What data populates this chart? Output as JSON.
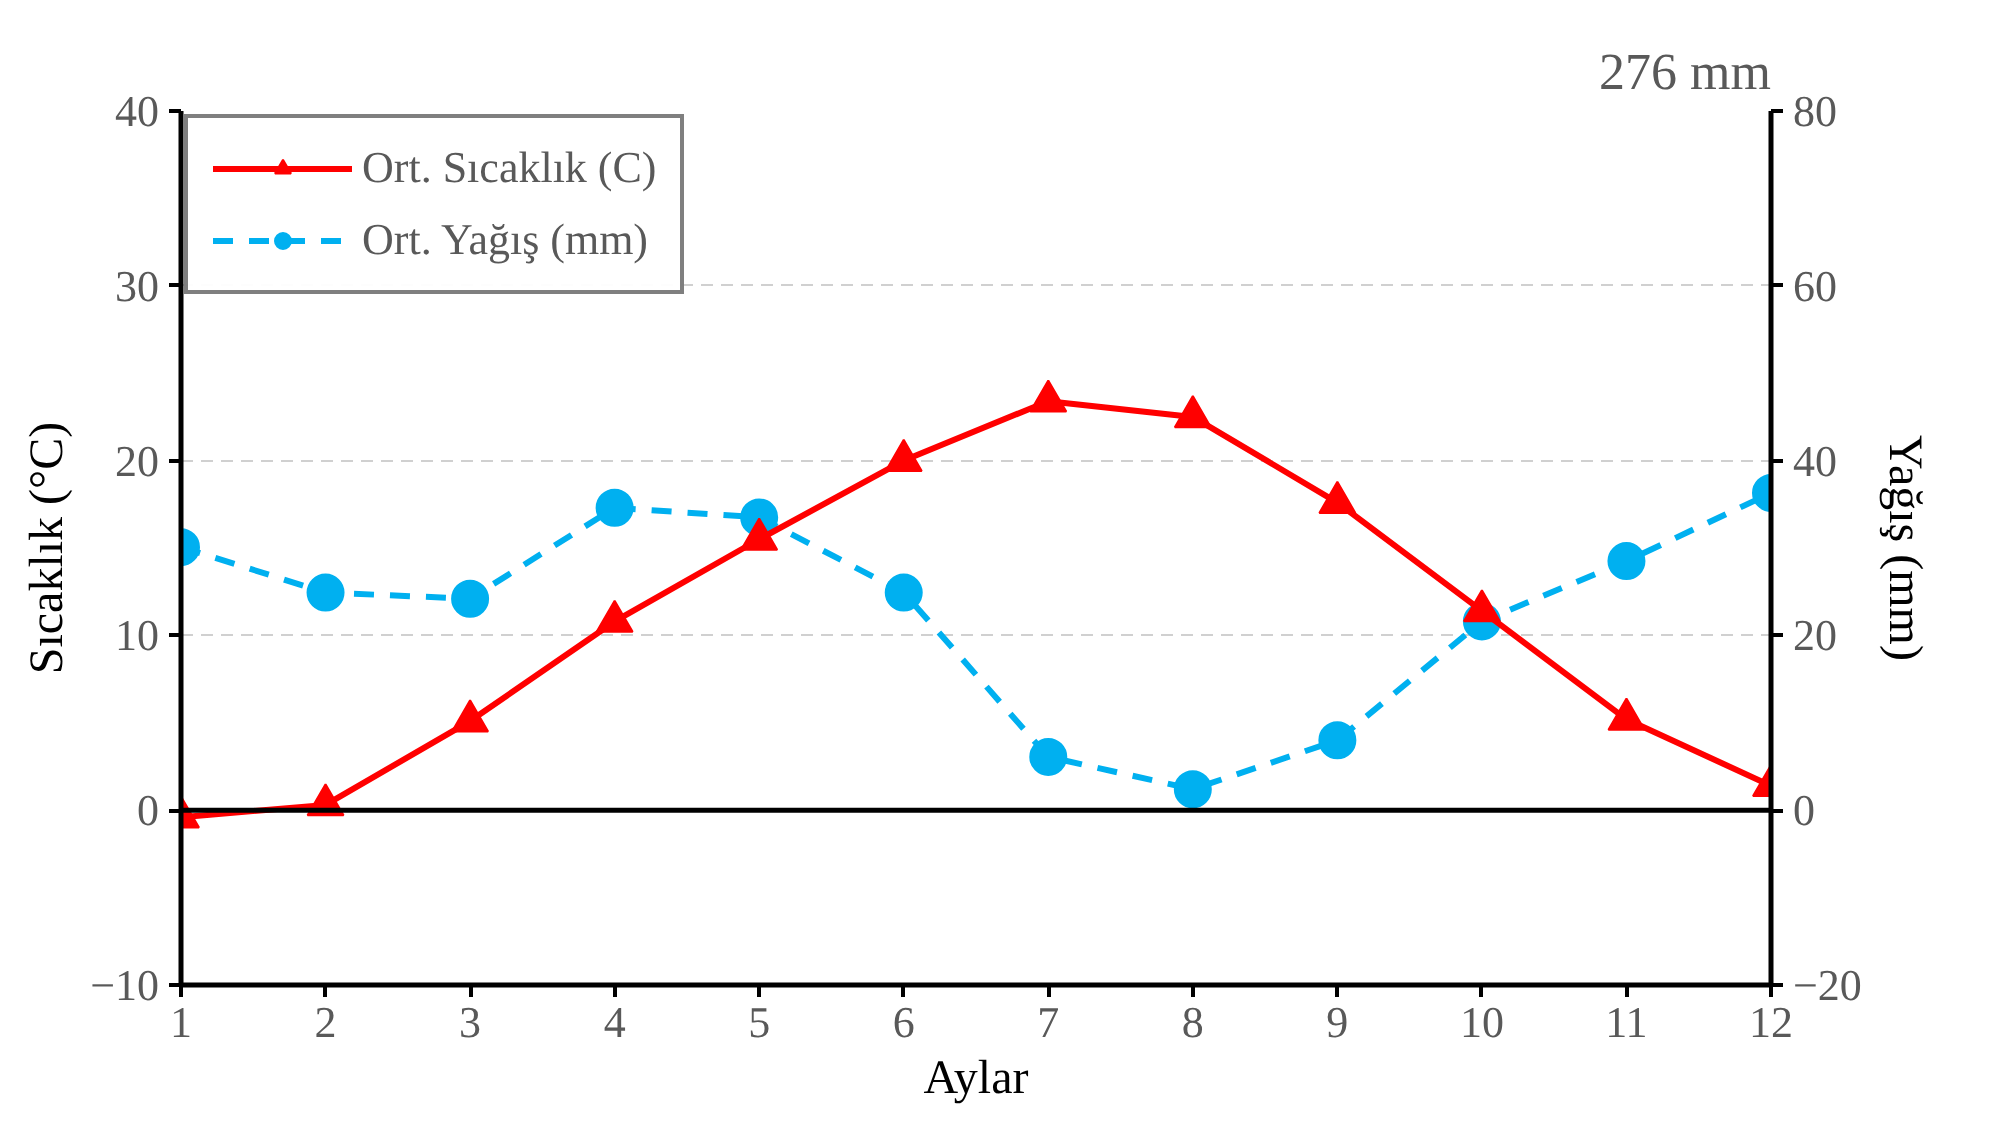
{
  "chart_data": {
    "type": "line",
    "xlabel": "Aylar",
    "ylabel": "Sıcaklık (°C)",
    "y2label": "Yağış (mm)",
    "annotations": [
      "276 mm"
    ],
    "x": [
      1,
      2,
      3,
      4,
      5,
      6,
      7,
      8,
      9,
      10,
      11,
      12
    ],
    "xlim": [
      1,
      12
    ],
    "xticks": [
      1,
      2,
      3,
      4,
      5,
      6,
      7,
      8,
      9,
      10,
      11,
      12
    ],
    "ylim": [
      -10,
      40
    ],
    "yticks": [
      -10,
      0,
      10,
      20,
      30,
      40
    ],
    "y2lim": [
      -20,
      80
    ],
    "y2ticks": [
      -20,
      0,
      20,
      40,
      60,
      80
    ],
    "grid": "y",
    "legend": "top left",
    "series": [
      {
        "name": "Ort. Sıcaklık (C)",
        "color": "#ff0000",
        "marker": "triangle",
        "line_style": "solid",
        "values": [
          -0.4,
          0.3,
          5.1,
          10.8,
          15.5,
          20.0,
          23.4,
          22.5,
          17.6,
          11.4,
          5.2,
          1.4
        ]
      },
      {
        "name": "Ort. Yağış (mm)",
        "color": "#00b0f0",
        "marker": "circle",
        "line_style": "dashed",
        "axis": "y2",
        "values": [
          30.1,
          24.9,
          24.2,
          34.6,
          33.5,
          24.9,
          6.1,
          2.4,
          8.0,
          21.6,
          28.5,
          36.3
        ]
      }
    ]
  }
}
